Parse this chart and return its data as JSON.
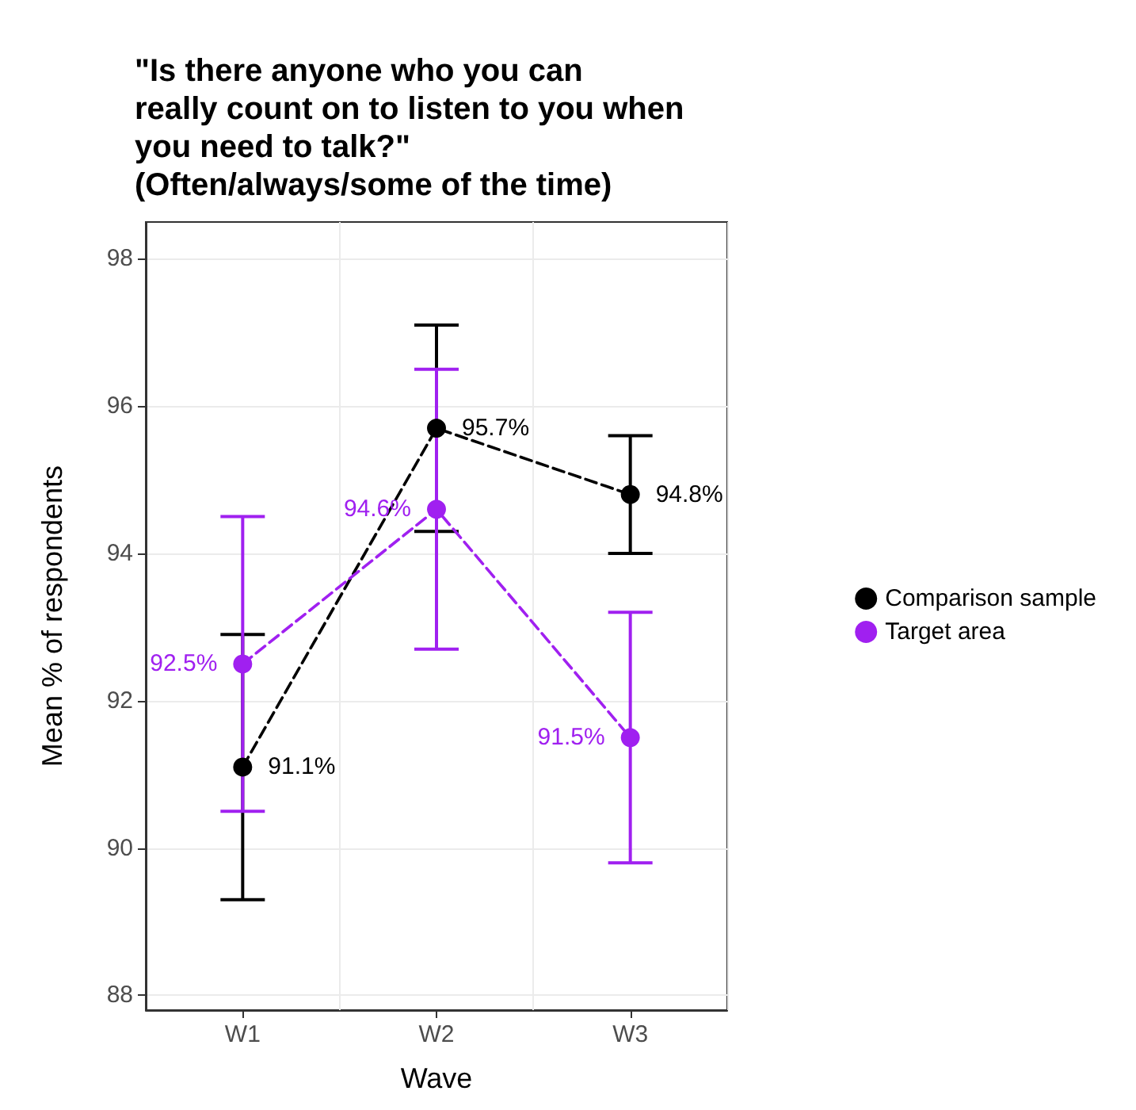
{
  "chart_data": {
    "type": "line",
    "title": "\"Is there anyone who you can\nreally count on to listen to you when\nyou need to talk?\"\n(Often/always/some of the time)",
    "xlabel": "Wave",
    "ylabel": "Mean % of respondents",
    "categories": [
      "W1",
      "W2",
      "W3"
    ],
    "series": [
      {
        "name": "Comparison sample",
        "color": "#000000",
        "values": [
          91.1,
          95.7,
          94.8
        ],
        "errors": [
          [
            89.3,
            92.9
          ],
          [
            94.3,
            97.1
          ],
          [
            94.0,
            95.6
          ]
        ],
        "value_labels": [
          "91.1%",
          "95.7%",
          "94.8%"
        ]
      },
      {
        "name": "Target area",
        "color": "#a020f0",
        "values": [
          92.5,
          94.6,
          91.5
        ],
        "errors": [
          [
            90.5,
            94.5
          ],
          [
            92.7,
            96.5
          ],
          [
            89.8,
            93.2
          ]
        ],
        "value_labels": [
          "92.5%",
          "94.6%",
          "91.5%"
        ]
      }
    ],
    "ylim": [
      87.8,
      98.5
    ],
    "yticks": [
      88,
      90,
      92,
      94,
      96,
      98
    ],
    "grid": true,
    "legend": "right",
    "marker": "circle",
    "line_style": "dashed"
  }
}
